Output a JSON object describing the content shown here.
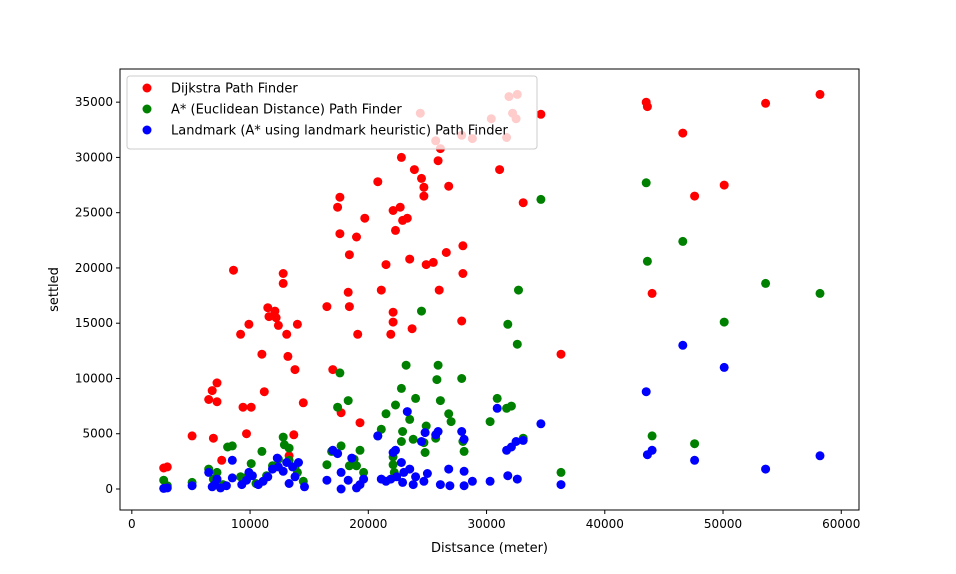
{
  "chart_data": {
    "type": "scatter",
    "xlabel": "Distsance (meter)",
    "ylabel": "settled",
    "xlim": [
      -1000,
      61500
    ],
    "ylim": [
      -1900,
      38000
    ],
    "xticks": [
      0,
      10000,
      20000,
      30000,
      40000,
      50000,
      60000
    ],
    "yticks": [
      0,
      5000,
      10000,
      15000,
      20000,
      25000,
      30000,
      35000
    ],
    "grid": false,
    "legend_placement": "upper-left",
    "series": [
      {
        "name": "Dijkstra Path Finder",
        "color": "#ff0000",
        "points": [
          [
            2700,
            1900
          ],
          [
            3000,
            2000
          ],
          [
            5100,
            4800
          ],
          [
            6500,
            8100
          ],
          [
            6800,
            8900
          ],
          [
            6900,
            4600
          ],
          [
            7200,
            9600
          ],
          [
            7200,
            7900
          ],
          [
            7600,
            2600
          ],
          [
            8600,
            19800
          ],
          [
            9200,
            14000
          ],
          [
            9400,
            7400
          ],
          [
            9700,
            5000
          ],
          [
            9900,
            14900
          ],
          [
            10100,
            7400
          ],
          [
            11000,
            12200
          ],
          [
            11200,
            8800
          ],
          [
            11500,
            16400
          ],
          [
            11600,
            15600
          ],
          [
            12100,
            16100
          ],
          [
            12200,
            15500
          ],
          [
            12400,
            14800
          ],
          [
            12800,
            19500
          ],
          [
            12800,
            18600
          ],
          [
            13100,
            14000
          ],
          [
            13200,
            12000
          ],
          [
            13300,
            3000
          ],
          [
            13700,
            4900
          ],
          [
            13800,
            10800
          ],
          [
            14000,
            14900
          ],
          [
            14500,
            7800
          ],
          [
            16500,
            16500
          ],
          [
            17000,
            10800
          ],
          [
            17400,
            25500
          ],
          [
            17600,
            26400
          ],
          [
            17600,
            23100
          ],
          [
            17700,
            6900
          ],
          [
            18300,
            17800
          ],
          [
            18400,
            21200
          ],
          [
            18400,
            16500
          ],
          [
            19000,
            22800
          ],
          [
            19100,
            14000
          ],
          [
            19300,
            6000
          ],
          [
            19700,
            24500
          ],
          [
            20800,
            27800
          ],
          [
            21100,
            18000
          ],
          [
            21500,
            20300
          ],
          [
            21900,
            14000
          ],
          [
            22100,
            25200
          ],
          [
            22100,
            16000
          ],
          [
            22100,
            15100
          ],
          [
            22300,
            23400
          ],
          [
            22700,
            25500
          ],
          [
            22800,
            30000
          ],
          [
            22900,
            24300
          ],
          [
            23300,
            24500
          ],
          [
            23500,
            20800
          ],
          [
            23700,
            14500
          ],
          [
            23900,
            28900
          ],
          [
            24400,
            34000
          ],
          [
            24500,
            28100
          ],
          [
            24700,
            27300
          ],
          [
            24700,
            26500
          ],
          [
            24900,
            20300
          ],
          [
            25500,
            20500
          ],
          [
            25700,
            31500
          ],
          [
            25900,
            29700
          ],
          [
            26000,
            18000
          ],
          [
            26100,
            30800
          ],
          [
            26600,
            21400
          ],
          [
            26800,
            27400
          ],
          [
            27900,
            32000
          ],
          [
            27900,
            15200
          ],
          [
            28000,
            22000
          ],
          [
            28000,
            19500
          ],
          [
            28800,
            31700
          ],
          [
            30400,
            33500
          ],
          [
            31100,
            28900
          ],
          [
            31700,
            31800
          ],
          [
            31900,
            35500
          ],
          [
            32200,
            34000
          ],
          [
            32500,
            33500
          ],
          [
            32600,
            35700
          ],
          [
            33100,
            25900
          ],
          [
            34600,
            33900
          ],
          [
            36300,
            12200
          ],
          [
            43500,
            35000
          ],
          [
            43600,
            34600
          ],
          [
            44000,
            17700
          ],
          [
            46600,
            32200
          ],
          [
            47600,
            26500
          ],
          [
            50100,
            27500
          ],
          [
            53600,
            34900
          ],
          [
            58200,
            35700
          ]
        ]
      },
      {
        "name": "A* (Euclidean Distance) Path Finder",
        "color": "#008000",
        "points": [
          [
            2700,
            800
          ],
          [
            3000,
            300
          ],
          [
            5100,
            600
          ],
          [
            6500,
            1800
          ],
          [
            6900,
            900
          ],
          [
            7200,
            1500
          ],
          [
            7700,
            400
          ],
          [
            8100,
            3800
          ],
          [
            8500,
            3900
          ],
          [
            9200,
            1100
          ],
          [
            9600,
            1000
          ],
          [
            10100,
            2300
          ],
          [
            10500,
            500
          ],
          [
            11000,
            3400
          ],
          [
            11400,
            1200
          ],
          [
            11900,
            2100
          ],
          [
            12400,
            2700
          ],
          [
            12800,
            4700
          ],
          [
            12900,
            4000
          ],
          [
            13300,
            3700
          ],
          [
            13300,
            2600
          ],
          [
            13800,
            2000
          ],
          [
            14000,
            1500
          ],
          [
            14500,
            700
          ],
          [
            16500,
            2200
          ],
          [
            16900,
            3400
          ],
          [
            17400,
            7400
          ],
          [
            17600,
            10500
          ],
          [
            17700,
            3900
          ],
          [
            18300,
            8000
          ],
          [
            18400,
            2100
          ],
          [
            18800,
            2700
          ],
          [
            19000,
            2100
          ],
          [
            19300,
            3500
          ],
          [
            19600,
            1500
          ],
          [
            20800,
            4800
          ],
          [
            21100,
            5400
          ],
          [
            21500,
            6800
          ],
          [
            22100,
            2200
          ],
          [
            22100,
            2900
          ],
          [
            22200,
            1500
          ],
          [
            22300,
            7600
          ],
          [
            22800,
            4300
          ],
          [
            22800,
            9100
          ],
          [
            22900,
            5200
          ],
          [
            23200,
            11200
          ],
          [
            23500,
            6300
          ],
          [
            23800,
            4500
          ],
          [
            24000,
            8200
          ],
          [
            24500,
            16100
          ],
          [
            24700,
            4200
          ],
          [
            24800,
            3300
          ],
          [
            24900,
            5700
          ],
          [
            25700,
            4600
          ],
          [
            25800,
            9900
          ],
          [
            25900,
            11200
          ],
          [
            26100,
            8000
          ],
          [
            26800,
            6800
          ],
          [
            27000,
            6100
          ],
          [
            27900,
            10000
          ],
          [
            28000,
            4300
          ],
          [
            28100,
            3400
          ],
          [
            30300,
            6100
          ],
          [
            30900,
            8200
          ],
          [
            31700,
            7300
          ],
          [
            31800,
            14900
          ],
          [
            32100,
            7500
          ],
          [
            32600,
            13100
          ],
          [
            32700,
            18000
          ],
          [
            33100,
            4600
          ],
          [
            34600,
            26200
          ],
          [
            36300,
            1500
          ],
          [
            43500,
            27700
          ],
          [
            43600,
            20600
          ],
          [
            44000,
            4800
          ],
          [
            46600,
            22400
          ],
          [
            47600,
            4100
          ],
          [
            50100,
            15100
          ],
          [
            53600,
            18600
          ],
          [
            58200,
            17700
          ]
        ]
      },
      {
        "name": "Landmark (A* using landmark heuristic) Path Finder",
        "color": "#0000ff",
        "points": [
          [
            2700,
            50
          ],
          [
            3000,
            100
          ],
          [
            5100,
            300
          ],
          [
            6500,
            1500
          ],
          [
            6800,
            200
          ],
          [
            7000,
            400
          ],
          [
            7200,
            900
          ],
          [
            7500,
            100
          ],
          [
            8000,
            300
          ],
          [
            8500,
            1000
          ],
          [
            8500,
            2600
          ],
          [
            9300,
            400
          ],
          [
            9700,
            800
          ],
          [
            9900,
            1500
          ],
          [
            10200,
            1200
          ],
          [
            10700,
            400
          ],
          [
            11100,
            700
          ],
          [
            11500,
            1100
          ],
          [
            11900,
            1800
          ],
          [
            12300,
            2800
          ],
          [
            12400,
            2000
          ],
          [
            12800,
            1600
          ],
          [
            13100,
            2400
          ],
          [
            13300,
            500
          ],
          [
            13600,
            2000
          ],
          [
            13800,
            1100
          ],
          [
            14100,
            2400
          ],
          [
            14600,
            200
          ],
          [
            16500,
            800
          ],
          [
            17000,
            3500
          ],
          [
            17400,
            3200
          ],
          [
            17700,
            1500
          ],
          [
            17700,
            0
          ],
          [
            18300,
            800
          ],
          [
            18600,
            2800
          ],
          [
            19000,
            100
          ],
          [
            19300,
            400
          ],
          [
            19600,
            900
          ],
          [
            20800,
            4800
          ],
          [
            21100,
            900
          ],
          [
            21500,
            700
          ],
          [
            21900,
            900
          ],
          [
            22100,
            3300
          ],
          [
            22300,
            3500
          ],
          [
            22400,
            1100
          ],
          [
            22800,
            2400
          ],
          [
            22900,
            600
          ],
          [
            23000,
            1500
          ],
          [
            23300,
            7000
          ],
          [
            23500,
            1800
          ],
          [
            23800,
            400
          ],
          [
            24000,
            1100
          ],
          [
            24500,
            4300
          ],
          [
            24700,
            700
          ],
          [
            24800,
            5100
          ],
          [
            25000,
            1400
          ],
          [
            25700,
            4900
          ],
          [
            25900,
            5200
          ],
          [
            26100,
            400
          ],
          [
            26800,
            1800
          ],
          [
            26900,
            300
          ],
          [
            27900,
            5200
          ],
          [
            28100,
            4500
          ],
          [
            28100,
            1600
          ],
          [
            28100,
            300
          ],
          [
            28800,
            700
          ],
          [
            30300,
            700
          ],
          [
            30900,
            7300
          ],
          [
            31700,
            3500
          ],
          [
            31800,
            1200
          ],
          [
            32100,
            3800
          ],
          [
            32500,
            4300
          ],
          [
            32600,
            900
          ],
          [
            33100,
            4400
          ],
          [
            34600,
            5900
          ],
          [
            36300,
            400
          ],
          [
            43500,
            8800
          ],
          [
            43600,
            3100
          ],
          [
            44000,
            3500
          ],
          [
            46600,
            13000
          ],
          [
            47600,
            2600
          ],
          [
            50100,
            11000
          ],
          [
            53600,
            1800
          ],
          [
            58200,
            3000
          ]
        ]
      }
    ]
  }
}
